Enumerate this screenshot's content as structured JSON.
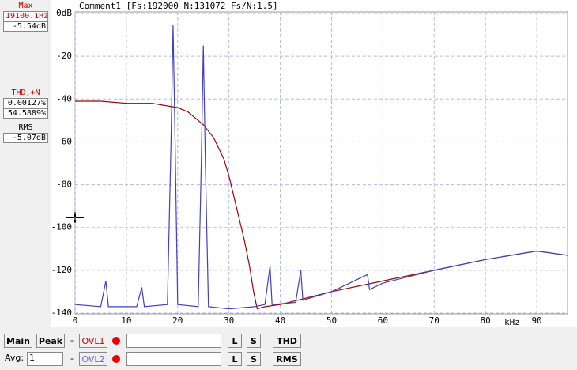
{
  "header": {
    "comment": "Comment1 [Fs:192000 N:131072 Fs/N:1.5]"
  },
  "panels": {
    "max": {
      "label": "Max",
      "freq": "19100.1Hz",
      "level": "-5.54dB"
    },
    "thd": {
      "label": "THD,+N",
      "thd": "0.00127%",
      "thdn": "54.5889%"
    },
    "rms": {
      "label": "RMS",
      "level": "-5.07dB"
    }
  },
  "toolbar": {
    "main": "Main",
    "peak": "Peak",
    "avg_label": "Avg:",
    "avg_value": "1",
    "dash1": "-",
    "dash2": "-",
    "ovl1": "OVL1",
    "ovl2": "OVL2",
    "l": "L",
    "s": "S",
    "thd": "THD",
    "rms": "RMS"
  },
  "chart_data": {
    "type": "line",
    "x_unit": "kHz",
    "grid": true,
    "xlim": [
      0,
      96
    ],
    "xticks": [
      0,
      10,
      20,
      30,
      40,
      50,
      60,
      70,
      80,
      90
    ],
    "ylim": [
      -140,
      0
    ],
    "yticks": [
      {
        "value": 0,
        "label": "0dB"
      },
      -20,
      -40,
      -60,
      -80,
      -100,
      -120,
      -140
    ],
    "series": [
      {
        "color": "#a00000",
        "x": [
          0,
          5,
          10,
          15,
          20,
          22,
          25,
          27,
          29,
          30,
          31,
          32,
          33,
          34,
          34.8,
          35.5,
          37,
          40,
          50,
          60,
          70,
          80,
          90,
          96
        ],
        "values": [
          -41,
          -41,
          -42,
          -42,
          -44,
          -46,
          -52,
          -58,
          -68,
          -76,
          -86,
          -96,
          -106,
          -118,
          -130,
          -138,
          -137,
          -136,
          -130,
          -125,
          -120,
          -115,
          -111,
          -113
        ]
      },
      {
        "color": "#4040c0",
        "x": [
          0,
          5,
          6,
          6.5,
          12,
          13,
          13.5,
          18,
          18.7,
          19.1,
          19.5,
          20,
          24,
          24.6,
          25,
          25.4,
          26,
          30,
          35,
          37,
          38,
          38.4,
          43,
          44,
          44.4,
          50,
          57,
          57.4,
          60,
          70,
          80,
          90,
          96
        ],
        "values": [
          -136,
          -137,
          -125,
          -137,
          -137,
          -128,
          -137,
          -136,
          -60,
          -5.54,
          -60,
          -136,
          -137,
          -70,
          -15,
          -70,
          -137,
          -138,
          -137,
          -136,
          -118,
          -136,
          -135,
          -120,
          -134,
          -130,
          -122,
          -129,
          -126,
          -120,
          -115,
          -111,
          -113
        ]
      }
    ]
  }
}
